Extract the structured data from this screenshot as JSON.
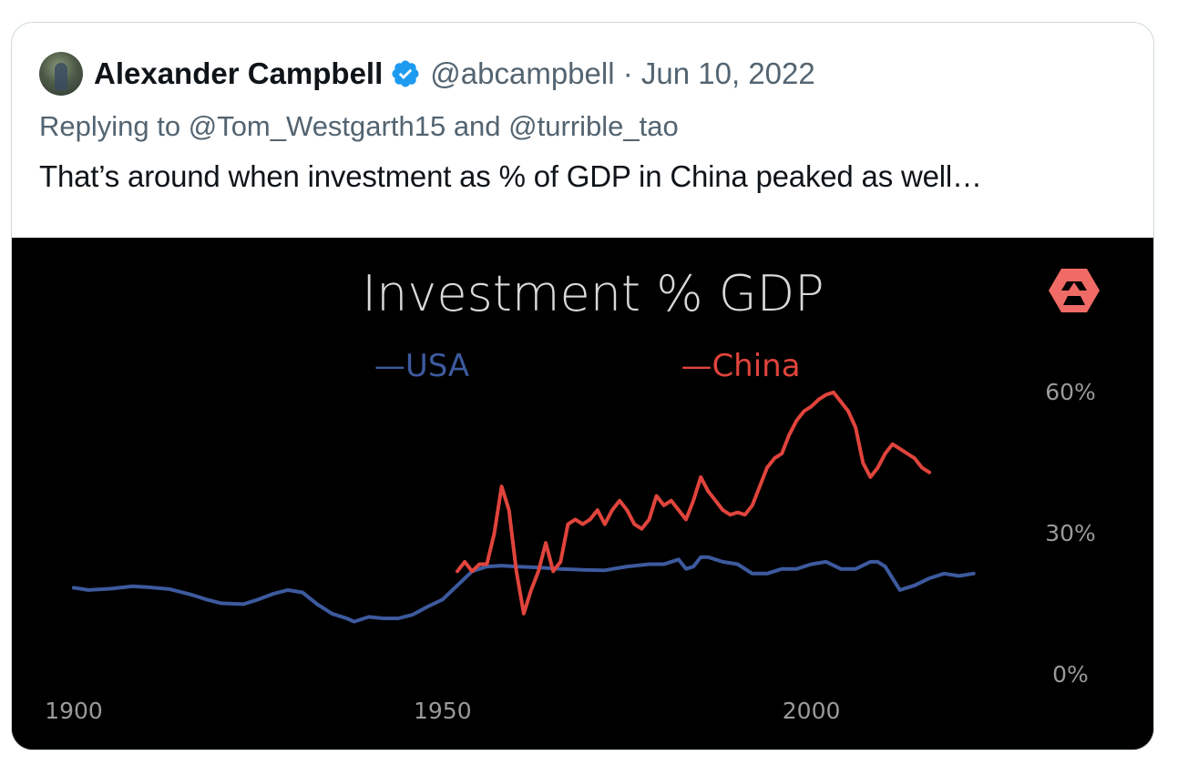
{
  "author": {
    "display_name": "Alexander Campbell",
    "handle": "@abcampbell",
    "separator": "·",
    "date": "Jun 10, 2022",
    "verified_color": "#1d9bf0"
  },
  "reply": {
    "prefix": "Replying to",
    "user1": "@Tom_Westgarth15",
    "joiner": "and",
    "user2": "@turrible_tao"
  },
  "body": "That’s around when investment as % of GDP in China peaked as well…",
  "chart_data": {
    "type": "line",
    "title": "Investment % GDP",
    "legend": [
      "—USA",
      "—China"
    ],
    "x_ticks": [
      1900,
      1950,
      2000
    ],
    "x_tick_labels": [
      "1900",
      "1950",
      "2000"
    ],
    "y_ticks": [
      0,
      30,
      60
    ],
    "y_tick_labels": [
      "0%",
      "30%",
      "60%"
    ],
    "xlim": [
      1900,
      2025
    ],
    "ylim": [
      0,
      63
    ],
    "series": [
      {
        "name": "USA",
        "color": "#3d5a9e",
        "x": [
          1900,
          1902,
          1905,
          1908,
          1910,
          1913,
          1916,
          1918,
          1920,
          1923,
          1925,
          1927,
          1929,
          1931,
          1933,
          1935,
          1937,
          1938,
          1940,
          1942,
          1944,
          1946,
          1948,
          1950,
          1952,
          1954,
          1956,
          1958,
          1960,
          1963,
          1966,
          1969,
          1972,
          1975,
          1978,
          1980,
          1982,
          1983,
          1984,
          1985,
          1986,
          1988,
          1990,
          1992,
          1994,
          1996,
          1998,
          2000,
          2002,
          2004,
          2006,
          2008,
          2009,
          2010,
          2012,
          2014,
          2016,
          2018,
          2020,
          2022
        ],
        "y": [
          18.5,
          18.0,
          18.3,
          18.8,
          18.6,
          18.2,
          17.0,
          16.0,
          15.2,
          15.0,
          16.0,
          17.2,
          18.0,
          17.5,
          15.0,
          13.0,
          12.0,
          11.3,
          12.3,
          12.0,
          12.0,
          12.8,
          14.5,
          16.0,
          19.0,
          22.0,
          23.0,
          23.2,
          23.0,
          22.8,
          22.5,
          22.3,
          22.2,
          23.0,
          23.5,
          23.5,
          24.5,
          22.5,
          23.0,
          25.0,
          25.0,
          24.0,
          23.5,
          21.5,
          21.5,
          22.5,
          22.5,
          23.5,
          24.0,
          22.5,
          22.5,
          24.0,
          24.0,
          23.0,
          18.0,
          19.0,
          20.5,
          21.5,
          21.0,
          21.5
        ]
      },
      {
        "name": "China",
        "color": "#e0443c",
        "x": [
          1952,
          1953,
          1954,
          1955,
          1956,
          1957,
          1958,
          1959,
          1960,
          1961,
          1962,
          1963,
          1964,
          1965,
          1966,
          1967,
          1968,
          1969,
          1970,
          1971,
          1972,
          1973,
          1974,
          1975,
          1976,
          1977,
          1978,
          1979,
          1980,
          1981,
          1982,
          1983,
          1984,
          1985,
          1986,
          1987,
          1988,
          1989,
          1990,
          1991,
          1992,
          1993,
          1994,
          1995,
          1996,
          1997,
          1998,
          1999,
          2000,
          2001,
          2002,
          2003,
          2004,
          2005,
          2006,
          2007,
          2008,
          2009,
          2010,
          2011,
          2012,
          2013,
          2014,
          2015,
          2016
        ],
        "y": [
          22.0,
          24.0,
          22.0,
          23.5,
          23.5,
          30.0,
          40.0,
          35.0,
          22.0,
          13.0,
          18.0,
          22.0,
          28.0,
          22.0,
          24.0,
          32.0,
          33.0,
          32.0,
          33.0,
          35.0,
          32.0,
          35.0,
          37.0,
          35.0,
          32.0,
          31.0,
          33.0,
          38.0,
          36.0,
          37.0,
          35.0,
          33.0,
          37.0,
          42.0,
          39.0,
          37.0,
          35.0,
          34.0,
          34.5,
          34.0,
          36.0,
          40.0,
          44.0,
          46.0,
          47.0,
          51.0,
          54.0,
          56.0,
          57.0,
          58.5,
          59.5,
          60.0,
          58.0,
          56.0,
          52.5,
          45.0,
          42.0,
          44.0,
          47.0,
          49.0,
          48.0,
          47.0,
          46.0,
          44.0,
          43.0
        ]
      }
    ],
    "logo_color": "#f06b66"
  }
}
